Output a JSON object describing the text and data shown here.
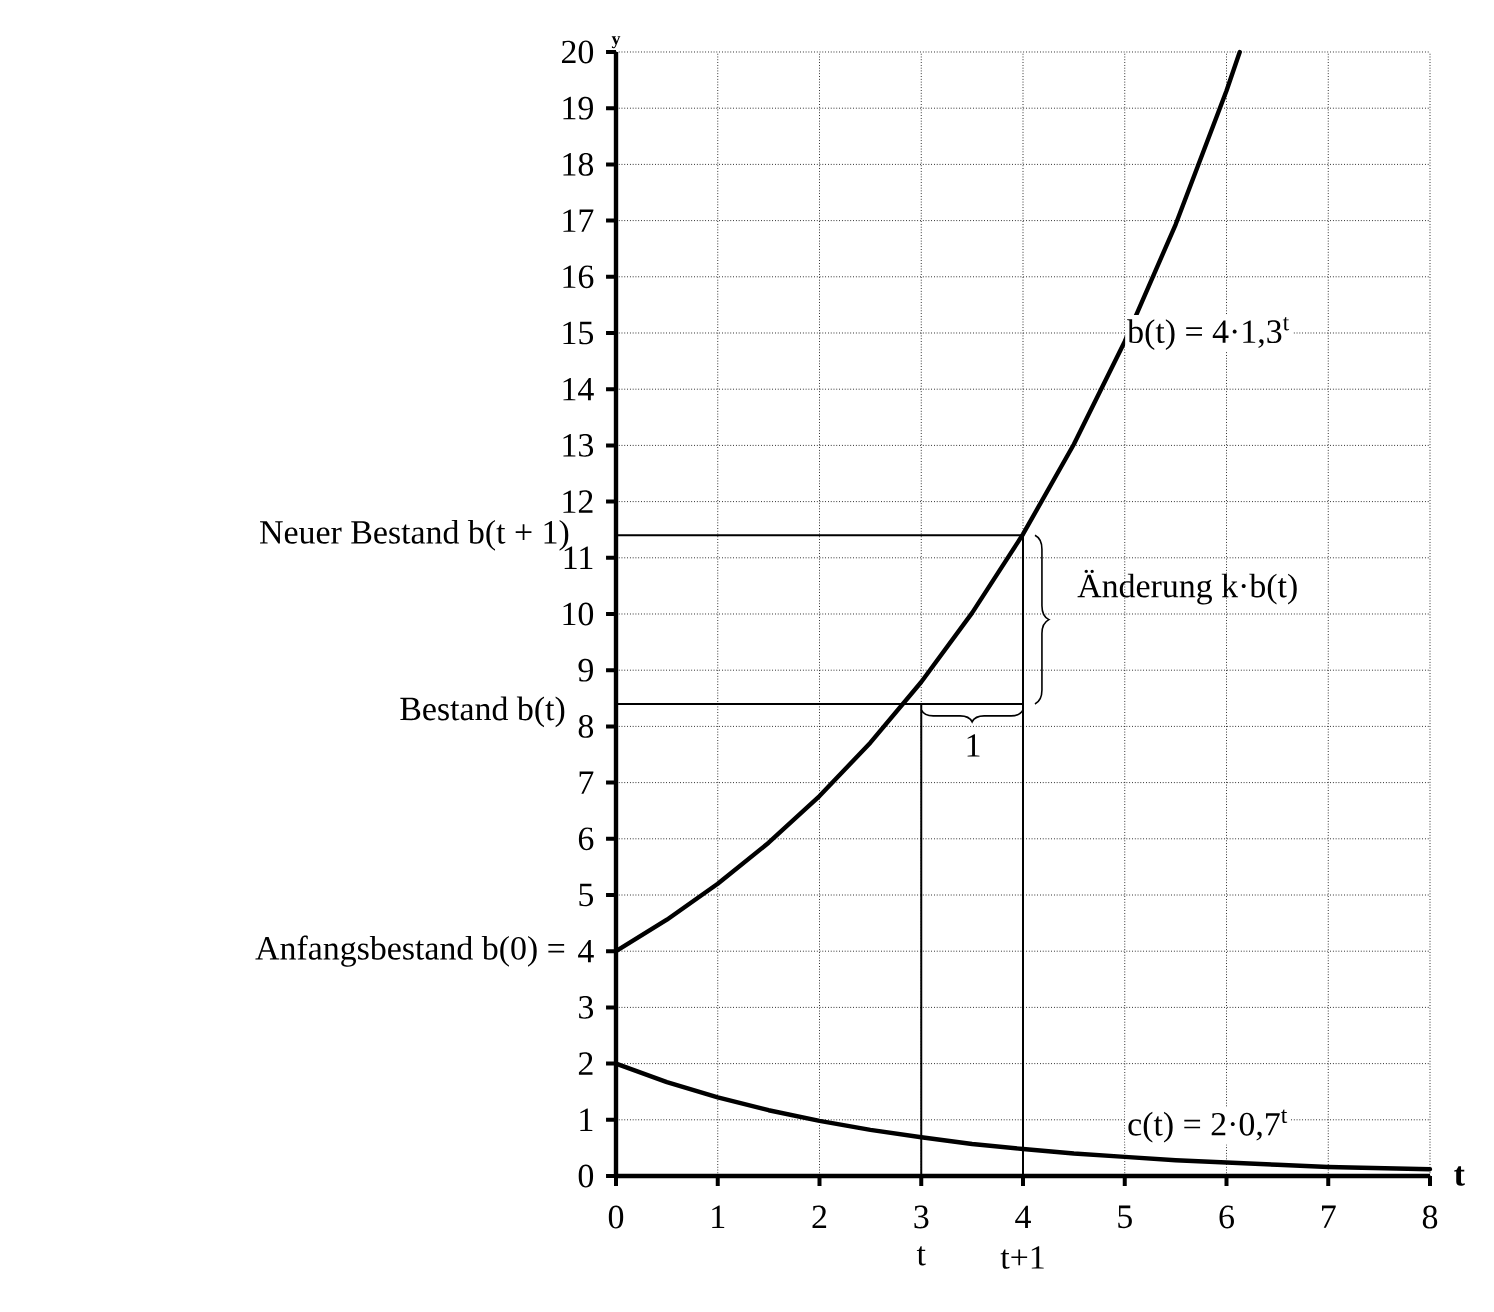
{
  "chart_data": {
    "type": "line",
    "xlabel": "t",
    "ylabel": "y",
    "xlim": [
      0,
      8
    ],
    "ylim": [
      0,
      20
    ],
    "xticks": [
      0,
      1,
      2,
      3,
      4,
      5,
      6,
      7,
      8
    ],
    "yticks": [
      0,
      1,
      2,
      3,
      4,
      5,
      6,
      7,
      8,
      9,
      10,
      11,
      12,
      13,
      14,
      15,
      16,
      17,
      18,
      19,
      20
    ],
    "grid": true,
    "marker": "none",
    "line_style": "solid",
    "series": [
      {
        "name": "b(t) = 4·1,3$^{t}$",
        "color": "#000000",
        "x": [
          0,
          0.5,
          1,
          1.5,
          2,
          2.5,
          3,
          3.5,
          4,
          4.5,
          5,
          5.5,
          6,
          6.13
        ],
        "values": [
          4,
          4.56,
          5.2,
          5.93,
          6.76,
          7.71,
          8.79,
          10.02,
          11.42,
          13.02,
          14.85,
          16.93,
          19.31,
          20
        ]
      },
      {
        "name": "c(t) = 2·0,7$^{t}$",
        "color": "#000000",
        "x": [
          0,
          0.5,
          1,
          1.5,
          2,
          2.5,
          3,
          3.5,
          4,
          4.5,
          5,
          5.5,
          6,
          6.5,
          7,
          7.5,
          8
        ],
        "values": [
          2,
          1.67,
          1.4,
          1.17,
          0.98,
          0.82,
          0.69,
          0.57,
          0.48,
          0.4,
          0.34,
          0.28,
          0.24,
          0.2,
          0.16,
          0.14,
          0.12
        ]
      },
      {
        "color": "#000000",
        "x": [
          0,
          4
        ],
        "values": [
          8.4,
          8.4
        ]
      },
      {
        "color": "#000000",
        "x": [
          0,
          4
        ],
        "values": [
          11.4,
          11.4
        ]
      },
      {
        "color": "#000000",
        "x": [
          3,
          3
        ],
        "values": [
          0,
          8.4
        ]
      },
      {
        "color": "#000000",
        "x": [
          4,
          4
        ],
        "values": [
          0,
          11.4
        ]
      }
    ],
    "annotations": [
      "Neuer Bestand b(t + 1)",
      "Bestand b(t)",
      "Anfangsbestand b(0) =",
      "Änderung k·b(t)",
      "1",
      "t",
      "t+1"
    ]
  }
}
